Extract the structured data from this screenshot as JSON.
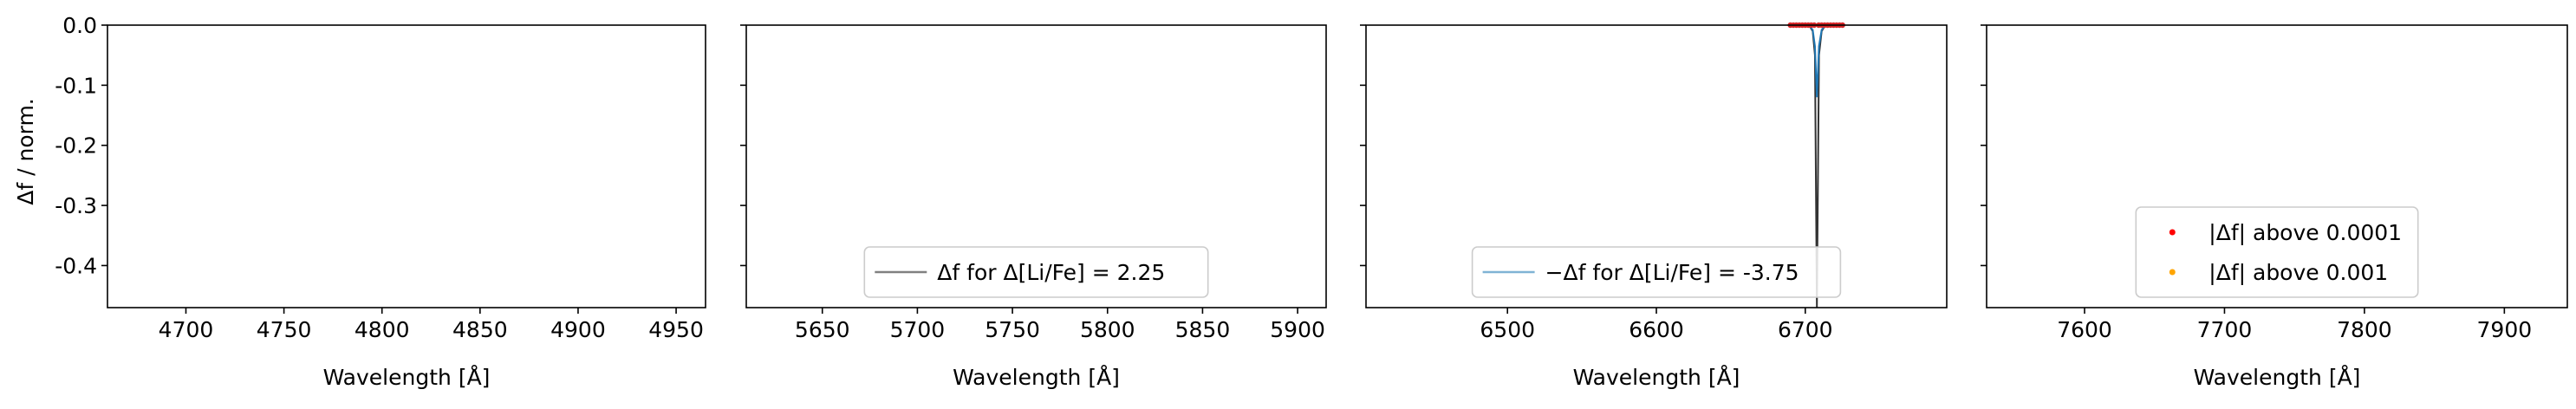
{
  "figure": {
    "ylabel": "Δf / norm.",
    "xlabel": "Wavelength [Å]"
  },
  "chart_data": [
    {
      "type": "line",
      "xlabel": "Wavelength [Å]",
      "ylabel": "Δf / norm.",
      "xlim": [
        4660,
        4965
      ],
      "ylim": [
        -0.47,
        0.0
      ],
      "xticks": [
        4700,
        4750,
        4800,
        4850,
        4900,
        4950
      ],
      "yticks": [
        0.0,
        -0.1,
        -0.2,
        -0.3,
        -0.4
      ],
      "ytick_labels_shown": true,
      "legend": null,
      "series": []
    },
    {
      "type": "line",
      "xlabel": "Wavelength [Å]",
      "xlim": [
        5610,
        5915
      ],
      "ylim": [
        -0.47,
        0.0
      ],
      "xticks": [
        5650,
        5700,
        5750,
        5800,
        5850,
        5900
      ],
      "yticks": [
        0.0,
        -0.1,
        -0.2,
        -0.3,
        -0.4
      ],
      "ytick_labels_shown": false,
      "legend": {
        "placement": "lower center",
        "entries": [
          {
            "label": "Δf for Δ[Li/Fe] = 2.25",
            "marker": "line",
            "color": "#808080"
          }
        ]
      },
      "series": []
    },
    {
      "type": "line",
      "xlabel": "Wavelength [Å]",
      "xlim": [
        6405,
        6795
      ],
      "ylim": [
        -0.47,
        0.0
      ],
      "xticks": [
        6500,
        6600,
        6700
      ],
      "yticks": [
        0.0,
        -0.1,
        -0.2,
        -0.3,
        -0.4
      ],
      "ytick_labels_shown": false,
      "legend": {
        "placement": "lower center",
        "entries": [
          {
            "label": "−Δf for Δ[Li/Fe] = -3.75",
            "marker": "line",
            "color": "#7fb3d5"
          }
        ]
      },
      "series": [
        {
          "name": "Δf for Δ[Li/Fe] = 2.25",
          "color": "#333333",
          "x": [
            6690,
            6703,
            6705,
            6706.5,
            6707.8,
            6709.2,
            6711,
            6713,
            6726
          ],
          "y": [
            0.0,
            -0.002,
            -0.01,
            -0.05,
            -0.47,
            -0.05,
            -0.01,
            -0.002,
            0.0
          ]
        },
        {
          "name": "−Δf for Δ[Li/Fe] = -3.75",
          "color": "#1f77b4",
          "x": [
            6690,
            6703,
            6705,
            6706.5,
            6707.8,
            6709.2,
            6711,
            6713,
            6726
          ],
          "y": [
            0.0,
            -0.002,
            -0.008,
            -0.035,
            -0.12,
            -0.035,
            -0.008,
            -0.002,
            0.0
          ]
        },
        {
          "name": "|Δf| above 0.0001",
          "color": "#d62728",
          "marker": "point",
          "x": [
            6690,
            6692,
            6694,
            6696,
            6698,
            6700,
            6702,
            6704,
            6706,
            6709,
            6711,
            6713,
            6715,
            6717,
            6719,
            6721,
            6723,
            6725
          ],
          "y": [
            0,
            0,
            0,
            0,
            0,
            0,
            0,
            0,
            0,
            0,
            0,
            0,
            0,
            0,
            0,
            0,
            0,
            0
          ]
        }
      ]
    },
    {
      "type": "scatter",
      "xlabel": "Wavelength [Å]",
      "xlim": [
        7530,
        7945
      ],
      "ylim": [
        -0.47,
        0.0
      ],
      "xticks": [
        7600,
        7700,
        7800,
        7900
      ],
      "yticks": [
        0.0,
        -0.1,
        -0.2,
        -0.3,
        -0.4
      ],
      "ytick_labels_shown": false,
      "legend": {
        "placement": "lower center",
        "entries": [
          {
            "label": "|Δf| above 0.0001",
            "marker": "point",
            "color": "#ff0000"
          },
          {
            "label": "|Δf| above 0.001",
            "marker": "point",
            "color": "#ffa500"
          }
        ]
      },
      "series": []
    }
  ]
}
